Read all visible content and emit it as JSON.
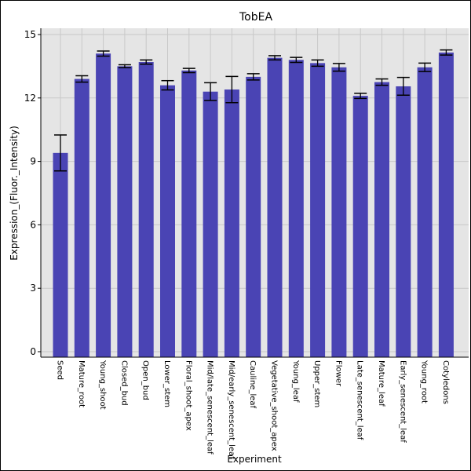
{
  "chart_data": {
    "type": "bar",
    "title": "TobEA",
    "xlabel": "Experiment",
    "ylabel": "Expression_(Fluor._Intensity)",
    "ylim": [
      0,
      15.3
    ],
    "yticks": [
      0,
      3,
      6,
      9,
      12,
      15
    ],
    "grid": true,
    "categories": [
      "Seed",
      "Mature_root",
      "Young_shoot",
      "Closed_bud",
      "Open_bud",
      "Lower_stem",
      "Floral_shoot_apex",
      "Mid/late_senescent_leaf",
      "Mid/early_senescent_leaf",
      "Cauline_leaf",
      "Vegetative_shoot_apex",
      "Young_leaf",
      "Upper_stem",
      "Flower",
      "Late_senescent_leaf",
      "Mature_leaf",
      "Early_senescent_leaf",
      "Young_root",
      "Cotyledons"
    ],
    "values": [
      9.4,
      12.9,
      14.1,
      13.5,
      13.7,
      12.6,
      13.3,
      12.3,
      12.4,
      13.0,
      13.9,
      13.8,
      13.65,
      13.45,
      12.1,
      12.75,
      12.55,
      13.45,
      14.15
    ],
    "errors": [
      0.85,
      0.15,
      0.12,
      0.07,
      0.1,
      0.22,
      0.1,
      0.42,
      0.62,
      0.15,
      0.1,
      0.12,
      0.15,
      0.18,
      0.12,
      0.15,
      0.42,
      0.2,
      0.12
    ],
    "colors": {
      "bar": "#4a44b4",
      "plot_background": "#e5e5e5",
      "grid": "#c8c8c8",
      "error_bar": "#000000"
    }
  }
}
